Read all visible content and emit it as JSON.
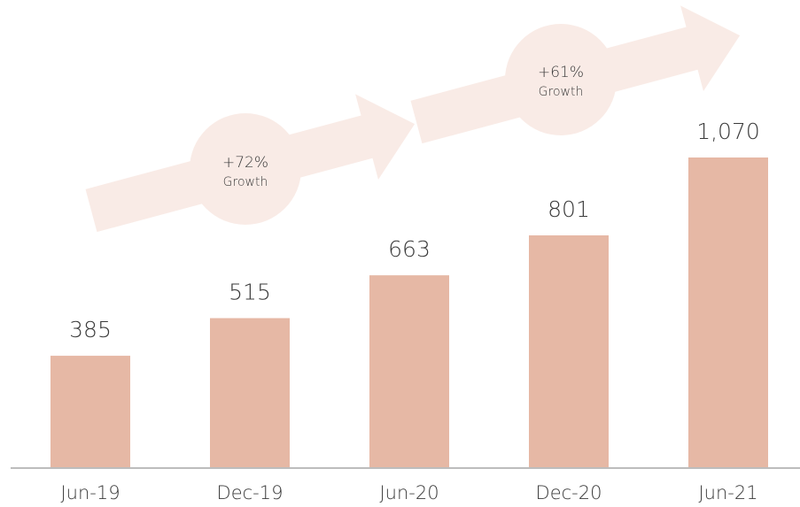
{
  "chart_data": {
    "type": "bar",
    "categories": [
      "Jun-19",
      "Dec-19",
      "Jun-20",
      "Dec-20",
      "Jun-21"
    ],
    "values": [
      385,
      515,
      663,
      801,
      1070
    ],
    "value_labels": [
      "385",
      "515",
      "663",
      "801",
      "1,070"
    ],
    "color": "#e6b8a5",
    "annotations": [
      {
        "value": "+72%",
        "label": "Growth"
      },
      {
        "value": "+61%",
        "label": "Growth"
      }
    ]
  }
}
